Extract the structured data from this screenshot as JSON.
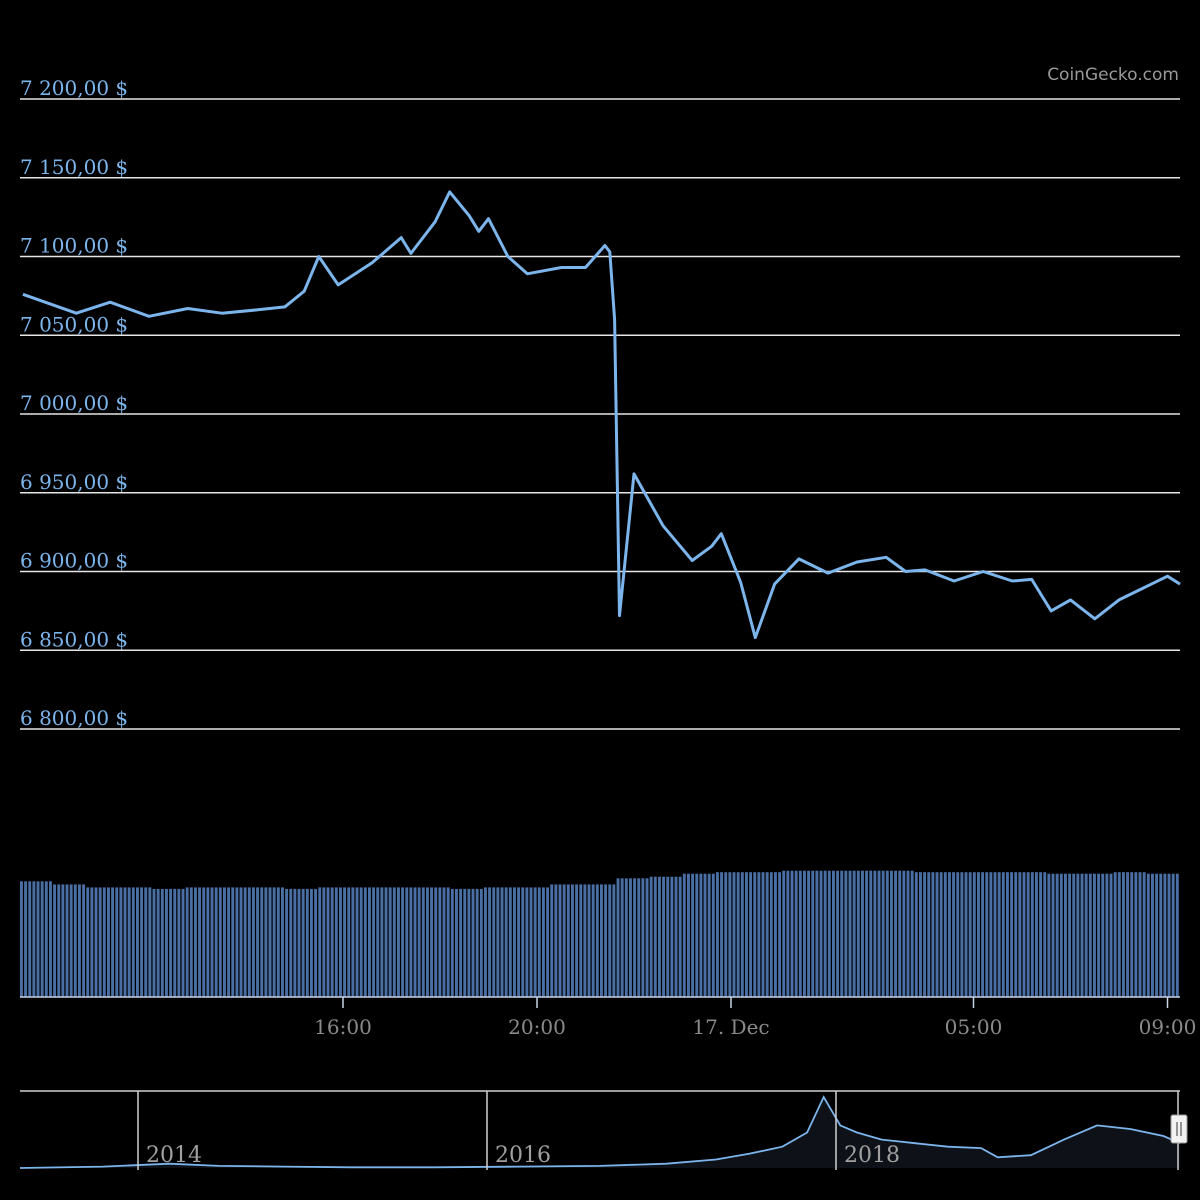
{
  "credits": "CoinGecko.com",
  "colors": {
    "background": "#000000",
    "series": "#7cb5ec",
    "volume": "#4a6fa5",
    "grid": "#e6e6e6",
    "axis_text": "#8a8a8a"
  },
  "chart_data": [
    {
      "type": "line",
      "name_hidden": "",
      "y_axis": {
        "tick_labels": [
          "7 200,00 $",
          "7 150,00 $",
          "7 100,00 $",
          "7 050,00 $",
          "7 000,00 $",
          "6 950,00 $",
          "6 900,00 $",
          "6 850,00 $",
          "6 800,00 $"
        ],
        "ticks": [
          7200,
          7150,
          7100,
          7050,
          7000,
          6950,
          6900,
          6850,
          6800
        ],
        "ylim": [
          6800,
          7200
        ]
      },
      "x_axis": {
        "tick_labels": [
          "16:00",
          "20:00",
          "17. Dec",
          "05:00",
          "09:00"
        ],
        "tick_hours": [
          16,
          20,
          24,
          29,
          33
        ]
      },
      "grid": true,
      "legend": "none",
      "x_hours": [
        9.4,
        10.5,
        11.2,
        12.0,
        12.8,
        13.5,
        14.2,
        14.8,
        15.2,
        15.5,
        15.9,
        16.6,
        17.2,
        17.4,
        17.9,
        18.2,
        18.6,
        18.8,
        19.0,
        19.4,
        19.8,
        20.5,
        21.0,
        21.4,
        21.5,
        21.6,
        21.7,
        22.0,
        22.6,
        23.2,
        23.6,
        23.8,
        24.2,
        24.5,
        24.9,
        25.4,
        26.0,
        26.6,
        27.2,
        27.6,
        28.0,
        28.6,
        29.2,
        29.8,
        30.2,
        30.6,
        31.0,
        31.5,
        32.0,
        32.6,
        33.0,
        33.4
      ],
      "values": [
        7076,
        7064,
        7071,
        7062,
        7067,
        7064,
        7066,
        7068,
        7078,
        7100,
        7082,
        7096,
        7112,
        7102,
        7122,
        7141,
        7126,
        7116,
        7124,
        7100,
        7089,
        7093,
        7093,
        7107,
        7103,
        7060,
        6872,
        6962,
        6929,
        6907,
        6916,
        6924,
        6893,
        6858,
        6892,
        6908,
        6899,
        6906,
        6909,
        6900,
        6901,
        6894,
        6900,
        6894,
        6895,
        6875,
        6882,
        6870,
        6882,
        6891,
        6897,
        6892
      ]
    },
    {
      "type": "bar",
      "label": "volume",
      "description_hidden": "",
      "values_relative": [
        0.76,
        0.74,
        0.72,
        0.72,
        0.71,
        0.72,
        0.72,
        0.72,
        0.71,
        0.72,
        0.72,
        0.72,
        0.72,
        0.71,
        0.72,
        0.72,
        0.74,
        0.74,
        0.78,
        0.79,
        0.81,
        0.82,
        0.82,
        0.83,
        0.83,
        0.83,
        0.83,
        0.82,
        0.82,
        0.82,
        0.82,
        0.81,
        0.81,
        0.82,
        0.81
      ],
      "ylim": [
        0,
        1
      ]
    },
    {
      "type": "area",
      "label": "navigator",
      "x_tick_labels": [
        "2014",
        "2016",
        "2018"
      ],
      "x_years": [
        2013.0,
        2013.5,
        2013.9,
        2014.2,
        2014.6,
        2015.0,
        2015.5,
        2016.0,
        2016.5,
        2016.9,
        2017.2,
        2017.4,
        2017.6,
        2017.75,
        2017.85,
        2017.95,
        2018.05,
        2018.2,
        2018.4,
        2018.6,
        2018.8,
        2018.9,
        2019.1,
        2019.3,
        2019.5,
        2019.7,
        2019.9,
        2020.0
      ],
      "values_relative": [
        0.0,
        0.02,
        0.06,
        0.03,
        0.02,
        0.01,
        0.01,
        0.02,
        0.03,
        0.06,
        0.12,
        0.2,
        0.3,
        0.5,
        1.0,
        0.6,
        0.5,
        0.4,
        0.35,
        0.3,
        0.28,
        0.15,
        0.18,
        0.4,
        0.6,
        0.55,
        0.45,
        0.35
      ]
    }
  ]
}
